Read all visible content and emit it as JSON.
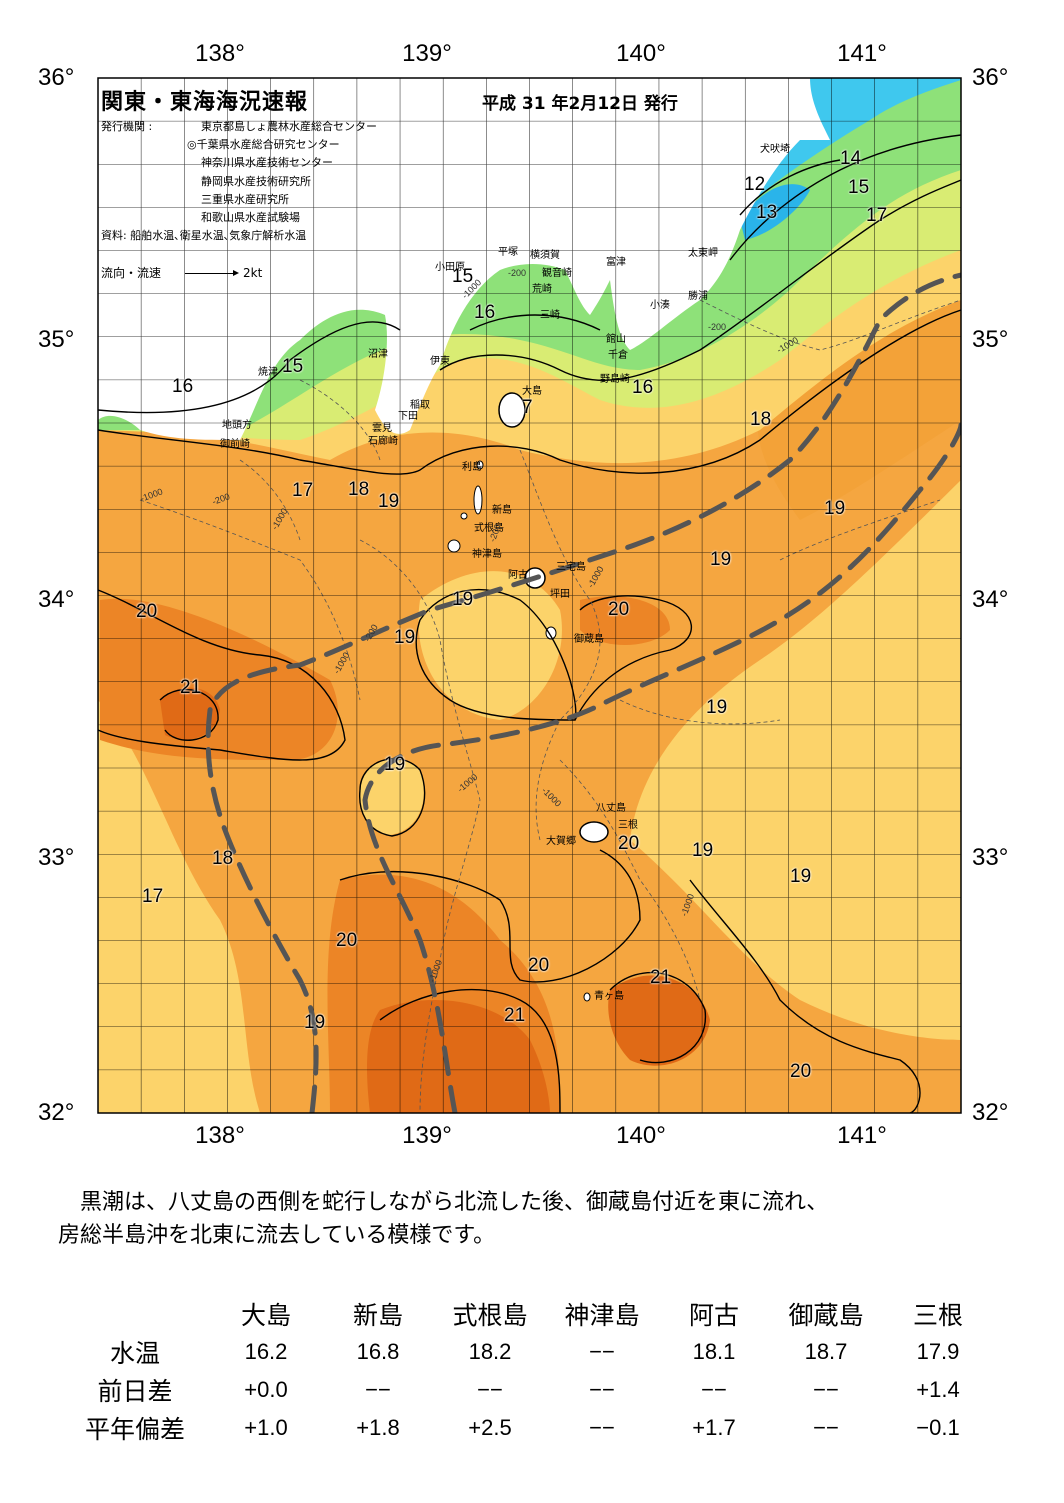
{
  "map": {
    "title": "関東・東海海況速報",
    "date": "平成 31 年2月12日 発行",
    "issuer": {
      "label": "発行機関 :",
      "orgs": [
        "東京都島しょ農林水産総合センター",
        "◎千葉県水産総合研究センター",
        "神奈川県水産技術センター",
        "静岡県水産技術研究所",
        "三重県水産研究所",
        "和歌山県水産試験場"
      ],
      "source": "資料: 船舶水温､衛星水温､気象庁解析水温"
    },
    "legend": {
      "label": "流向・流速",
      "scale": "2kt"
    },
    "lon_labels": [
      "138°",
      "139°",
      "140°",
      "141°"
    ],
    "lat_labels": [
      "36°",
      "35°",
      "34°",
      "33°",
      "32°"
    ],
    "isotherm_labels": [
      "16",
      "15",
      "15",
      "16",
      "7",
      "12",
      "13",
      "14",
      "15",
      "17",
      "16",
      "18",
      "17",
      "18",
      "19",
      "19",
      "19",
      "19",
      "19",
      "20",
      "20",
      "21",
      "19",
      "19",
      "19",
      "20",
      "19",
      "19",
      "18",
      "17",
      "20",
      "20",
      "21",
      "21",
      "20",
      "19"
    ],
    "place_names": [
      "犬吠埼",
      "太東岬",
      "勝浦",
      "小湊",
      "富津",
      "館山",
      "千倉",
      "野島崎",
      "観音崎",
      "荒崎",
      "三崎",
      "横須賀",
      "平塚",
      "小田原",
      "沼津",
      "伊東",
      "稲取",
      "下田",
      "雲見",
      "石廊崎",
      "焼津",
      "地頭方",
      "御前崎",
      "大島",
      "利島",
      "新島",
      "式根島",
      "神津島",
      "三宅島",
      "阿古",
      "坪田",
      "御蔵島",
      "八丈島",
      "三根",
      "大賀郷",
      "青ヶ島"
    ],
    "depth_labels": [
      "-200",
      "-1000"
    ],
    "colors": {
      "ocean_cold": "#3fc3ee",
      "ocean_cool": "#7ee07a",
      "ocean_mild": "#ffe06a",
      "ocean_warm": "#f7a830",
      "ocean_hot": "#e86a10",
      "land": "#ffffff",
      "kuroshio_axis": "#555555"
    }
  },
  "summary": {
    "line1": "黒潮は、八丈島の西側を蛇行しながら北流した後、御蔵島付近を東に流れ、",
    "line2": "房総半島沖を北東に流去している模様です。"
  },
  "table": {
    "columns": [
      "大島",
      "新島",
      "式根島",
      "神津島",
      "阿古",
      "御蔵島",
      "三根"
    ],
    "rows": [
      {
        "label": "水温",
        "values": [
          "16.2",
          "16.8",
          "18.2",
          "−−",
          "18.1",
          "18.7",
          "17.9"
        ]
      },
      {
        "label": "前日差",
        "values": [
          "+0.0",
          "−−",
          "−−",
          "−−",
          "−−",
          "−−",
          "+1.4"
        ]
      },
      {
        "label": "平年偏差",
        "values": [
          "+1.0",
          "+1.8",
          "+2.5",
          "−−",
          "+1.7",
          "−−",
          "−0.1"
        ]
      }
    ]
  }
}
